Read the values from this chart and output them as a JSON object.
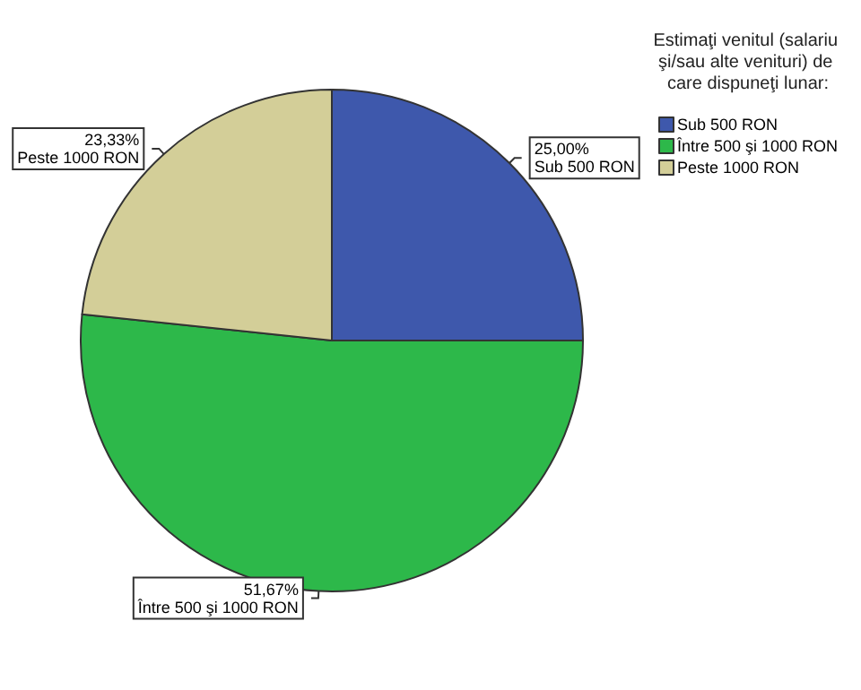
{
  "chart_data": {
    "type": "pie",
    "legend_title": "Estimaţi venitul (salariu şi/sau alte venituri) de care dispuneţi lunar:",
    "categories": [
      "Sub 500 RON",
      "Între 500 şi 1000 RON",
      "Peste 1000 RON"
    ],
    "values": [
      25.0,
      51.67,
      23.33
    ],
    "colors": [
      "#3e58ac",
      "#2db84a",
      "#d3ce98"
    ],
    "value_labels": [
      "25,00%",
      "51,67%",
      "23,33%"
    ],
    "legend": "top right"
  }
}
